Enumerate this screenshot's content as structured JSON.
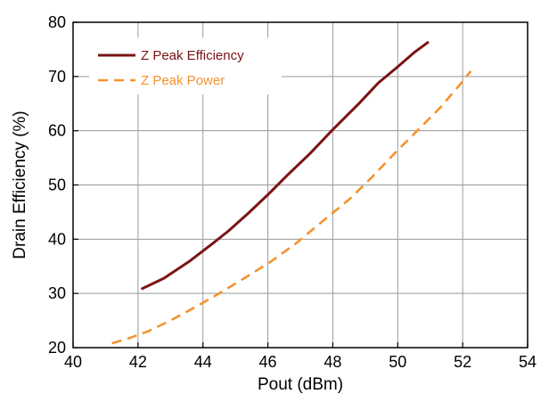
{
  "chart_data": {
    "type": "line",
    "title": "",
    "xlabel": "Pout (dBm)",
    "ylabel": "Drain Efficiency (%)",
    "xlim": [
      40,
      54
    ],
    "ylim": [
      20,
      80
    ],
    "xticks": [
      40,
      42,
      44,
      46,
      48,
      50,
      52,
      54
    ],
    "yticks": [
      20,
      30,
      40,
      50,
      60,
      70,
      80
    ],
    "grid": true,
    "legend_position": "top-left",
    "series": [
      {
        "name": "Z Peak Efficiency",
        "color": "#7a1414",
        "style": "solid",
        "x": [
          42.1,
          42.8,
          43.6,
          44.3,
          44.8,
          45.4,
          46.0,
          46.6,
          47.3,
          48.0,
          48.8,
          49.4,
          50.0,
          50.5,
          50.95
        ],
        "y": [
          30.8,
          32.8,
          36.0,
          39.2,
          41.6,
          44.8,
          48.2,
          51.8,
          55.8,
          60.2,
          65.0,
          68.8,
          71.8,
          74.4,
          76.4
        ]
      },
      {
        "name": "Z Peak Power",
        "color": "#f4922e",
        "style": "dashed",
        "x": [
          41.2,
          41.7,
          42.3,
          43.0,
          43.8,
          44.5,
          45.3,
          46.1,
          46.9,
          47.7,
          48.5,
          49.2,
          49.9,
          50.6,
          51.3,
          51.9,
          52.25
        ],
        "y": [
          20.8,
          21.7,
          23.0,
          25.0,
          27.6,
          30.0,
          32.9,
          35.9,
          39.4,
          43.4,
          47.3,
          51.4,
          55.8,
          60.0,
          64.2,
          68.4,
          71.0
        ]
      }
    ]
  }
}
